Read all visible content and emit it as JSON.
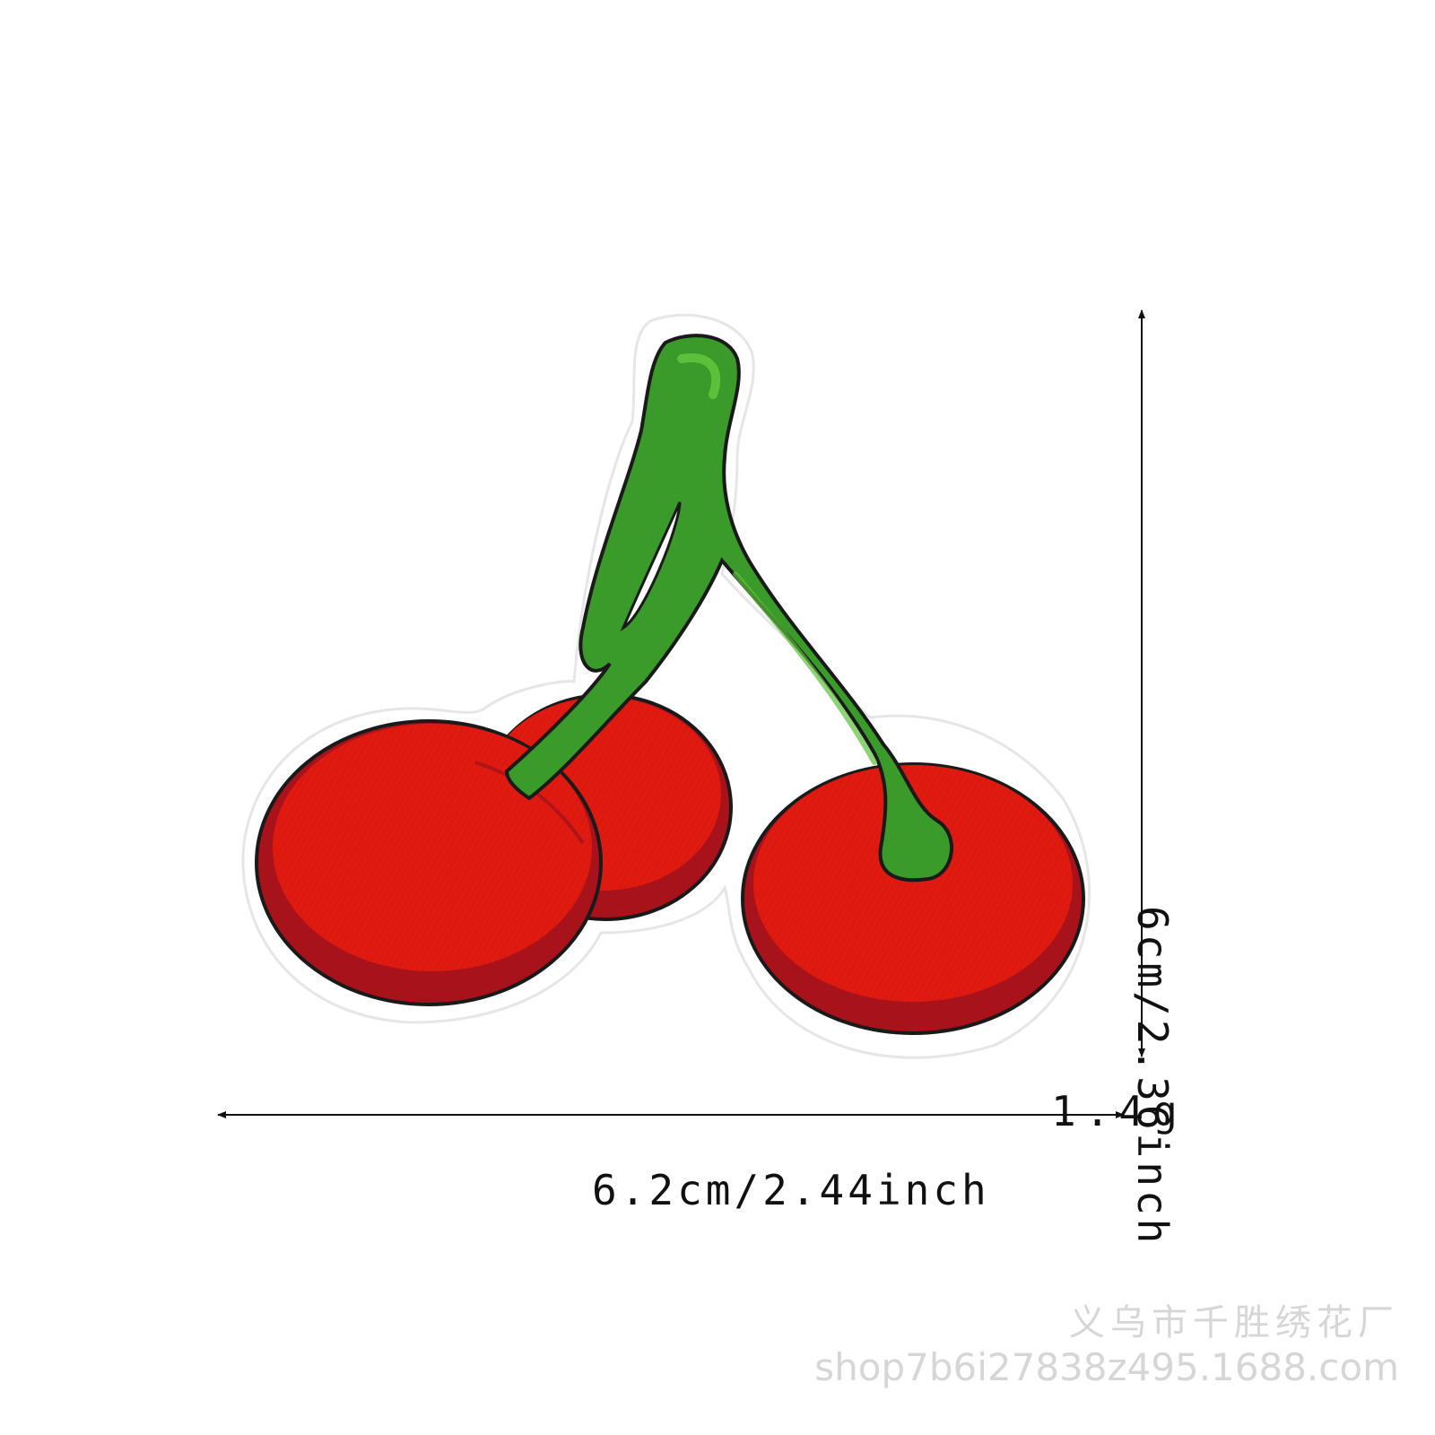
{
  "product": {
    "subject": "cherry-patch",
    "colors": {
      "cherry_red": "#e01a10",
      "cherry_shadow": "#a8121a",
      "stem_green": "#3a9a2a",
      "stem_highlight": "#5cc03a",
      "outline": "#1a1a1a",
      "backing": "#ffffff"
    }
  },
  "dimensions": {
    "width_label": "6.2cm/2.44inch",
    "height_label": "6cm/2.36inch",
    "weight_label": "1.4g"
  },
  "watermark": {
    "shop_name": "义乌市千胜绣花厂",
    "shop_url": "shop7b6i27838z495.1688.com"
  }
}
